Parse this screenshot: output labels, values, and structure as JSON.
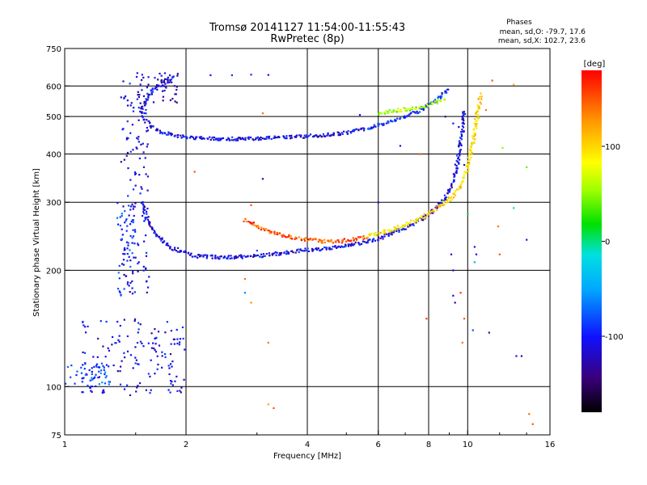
{
  "chart_data": {
    "type": "scatter",
    "title_line1": "Tromsø 20141127 11:54:00-11:55:43",
    "title_line2": "RwPretec (8p)",
    "phase_info": {
      "label": "Phases",
      "line_o": "mean, sd,O: -79.7, 17.6",
      "line_x": "mean, sd,X: 102.7, 23.6"
    },
    "xlabel": "Frequency [MHz]",
    "ylabel": "Stationary phase Virtual Height [km]",
    "x_scale": "log",
    "y_scale": "log",
    "xlim": [
      1,
      16
    ],
    "ylim": [
      75,
      750
    ],
    "x_ticks": [
      {
        "value": 1,
        "label": "1"
      },
      {
        "value": 2,
        "label": "2"
      },
      {
        "value": 4,
        "label": "4"
      },
      {
        "value": 6,
        "label": "6"
      },
      {
        "value": 8,
        "label": "8"
      },
      {
        "value": 10,
        "label": "10"
      },
      {
        "value": 16,
        "label": "16"
      }
    ],
    "y_ticks": [
      {
        "value": 75,
        "label": "75"
      },
      {
        "value": 100,
        "label": "100"
      },
      {
        "value": 200,
        "label": "200"
      },
      {
        "value": 300,
        "label": "300"
      },
      {
        "value": 400,
        "label": "400"
      },
      {
        "value": 500,
        "label": "500"
      },
      {
        "value": 600,
        "label": "600"
      },
      {
        "value": 750,
        "label": "750"
      }
    ],
    "grid": true,
    "colorbar": {
      "label": "[deg]",
      "range": [
        -180,
        180
      ],
      "ticks": [
        {
          "value": 100,
          "label": "100"
        },
        {
          "value": 0,
          "label": "0"
        },
        {
          "value": -100,
          "label": "-100"
        }
      ]
    },
    "traces": [
      {
        "phase": -110,
        "spread": 0.02,
        "points": [
          [
            1.9,
            640
          ],
          [
            1.8,
            620
          ],
          [
            1.7,
            600
          ],
          [
            1.6,
            560
          ],
          [
            1.55,
            520
          ],
          [
            1.58,
            490
          ],
          [
            1.65,
            470
          ],
          [
            1.75,
            455
          ],
          [
            1.9,
            445
          ],
          [
            2.1,
            440
          ],
          [
            2.4,
            438
          ],
          [
            2.8,
            438
          ],
          [
            3.2,
            440
          ],
          [
            3.6,
            442
          ],
          [
            4.0,
            445
          ],
          [
            4.4,
            448
          ],
          [
            4.8,
            452
          ],
          [
            5.2,
            458
          ],
          [
            5.6,
            466
          ]
        ]
      },
      {
        "phase": -95,
        "spread": 0.02,
        "points": [
          [
            5.6,
            466
          ],
          [
            6.0,
            475
          ],
          [
            6.5,
            488
          ],
          [
            7.0,
            500
          ],
          [
            7.5,
            515
          ],
          [
            8.0,
            535
          ],
          [
            8.5,
            560
          ],
          [
            9.0,
            590
          ]
        ]
      },
      {
        "phase": -110,
        "spread": 0.02,
        "points": [
          [
            1.55,
            300
          ],
          [
            1.6,
            270
          ],
          [
            1.7,
            245
          ],
          [
            1.85,
            228
          ],
          [
            2.1,
            218
          ],
          [
            2.5,
            216
          ],
          [
            3.0,
            218
          ],
          [
            3.5,
            222
          ],
          [
            4.0,
            226
          ],
          [
            4.5,
            228
          ],
          [
            5.0,
            232
          ],
          [
            5.5,
            236
          ],
          [
            6.0,
            242
          ],
          [
            6.5,
            250
          ],
          [
            7.0,
            258
          ],
          [
            7.5,
            268
          ],
          [
            8.0,
            280
          ],
          [
            8.5,
            296
          ],
          [
            9.0,
            320
          ],
          [
            9.3,
            350
          ],
          [
            9.5,
            400
          ],
          [
            9.7,
            460
          ],
          [
            9.8,
            520
          ]
        ]
      },
      {
        "phase": 150,
        "spread": 0.02,
        "points": [
          [
            2.8,
            270
          ],
          [
            3.0,
            260
          ],
          [
            3.3,
            250
          ],
          [
            3.6,
            244
          ],
          [
            4.0,
            240
          ],
          [
            4.4,
            238
          ],
          [
            4.8,
            238
          ],
          [
            5.2,
            240
          ],
          [
            5.6,
            244
          ]
        ]
      },
      {
        "phase": 95,
        "spread": 0.02,
        "points": [
          [
            5.6,
            244
          ],
          [
            6.0,
            250
          ],
          [
            6.5,
            255
          ],
          [
            7.0,
            262
          ],
          [
            7.5,
            270
          ],
          [
            8.0,
            280
          ],
          [
            8.5,
            292
          ],
          [
            9.0,
            305
          ],
          [
            9.4,
            320
          ],
          [
            9.7,
            340
          ],
          [
            10.0,
            370
          ],
          [
            10.2,
            410
          ],
          [
            10.4,
            460
          ],
          [
            10.6,
            520
          ],
          [
            10.8,
            575
          ]
        ]
      },
      {
        "phase": 55,
        "spread": 0.02,
        "points": [
          [
            6.0,
            510
          ],
          [
            6.8,
            520
          ],
          [
            7.6,
            528
          ],
          [
            8.2,
            540
          ],
          [
            8.8,
            555
          ]
        ]
      }
    ],
    "clusters": [
      {
        "phase": -112,
        "fmin": 1.38,
        "fmax": 1.62,
        "hmin": 175,
        "hmax": 620
      },
      {
        "phase": -88,
        "fmin": 1.35,
        "fmax": 1.5,
        "hmin": 170,
        "hmax": 300
      },
      {
        "phase": -120,
        "fmin": 1.5,
        "fmax": 1.9,
        "hmin": 540,
        "hmax": 650
      },
      {
        "phase": -108,
        "fmin": 1.1,
        "fmax": 2.0,
        "hmin": 95,
        "hmax": 150
      },
      {
        "phase": -80,
        "fmin": 1.0,
        "fmax": 1.3,
        "hmin": 100,
        "hmax": 115
      }
    ],
    "scatter_points": [
      [
        2.3,
        640,
        -100
      ],
      [
        2.6,
        640,
        -90
      ],
      [
        2.9,
        642,
        -95
      ],
      [
        3.2,
        641,
        -100
      ],
      [
        2.9,
        295,
        150
      ],
      [
        3.1,
        510,
        140
      ],
      [
        2.9,
        165,
        130
      ],
      [
        3.2,
        90,
        120
      ],
      [
        3.3,
        88,
        150
      ],
      [
        3.2,
        130,
        140
      ],
      [
        3.0,
        225,
        -80
      ],
      [
        3.1,
        345,
        -120
      ],
      [
        6.0,
        300,
        -110
      ],
      [
        7.6,
        400,
        150
      ],
      [
        7.9,
        150,
        160
      ],
      [
        9.2,
        480,
        -100
      ],
      [
        9.1,
        220,
        -110
      ],
      [
        9.2,
        200,
        -120
      ],
      [
        9.3,
        165,
        -130
      ],
      [
        9.2,
        172,
        -120
      ],
      [
        9.7,
        130,
        140
      ],
      [
        9.8,
        150,
        150
      ],
      [
        9.6,
        175,
        160
      ],
      [
        10.0,
        280,
        10
      ],
      [
        9.8,
        375,
        -100
      ],
      [
        10.5,
        220,
        -110
      ],
      [
        10.4,
        210,
        -40
      ],
      [
        10.4,
        230,
        -100
      ],
      [
        11.1,
        520,
        140
      ],
      [
        11.5,
        620,
        150
      ],
      [
        11.9,
        260,
        140
      ],
      [
        12.0,
        220,
        150
      ],
      [
        11.3,
        138,
        -120
      ],
      [
        12.2,
        415,
        50
      ],
      [
        13.0,
        605,
        120
      ],
      [
        13.2,
        120,
        -110
      ],
      [
        13.6,
        120,
        -120
      ],
      [
        14.2,
        85,
        140
      ],
      [
        14.5,
        80,
        150
      ],
      [
        14.0,
        370,
        40
      ],
      [
        14.0,
        240,
        -110
      ],
      [
        13.0,
        290,
        -20
      ],
      [
        10.3,
        140,
        -80
      ],
      [
        6.8,
        420,
        -110
      ],
      [
        8.4,
        290,
        -130
      ],
      [
        2.1,
        360,
        150
      ],
      [
        2.8,
        190,
        140
      ],
      [
        2.8,
        175,
        -60
      ],
      [
        4.5,
        450,
        -110
      ],
      [
        8.8,
        500,
        -140
      ],
      [
        9.5,
        470,
        -130
      ],
      [
        5.4,
        505,
        -100
      ]
    ]
  }
}
